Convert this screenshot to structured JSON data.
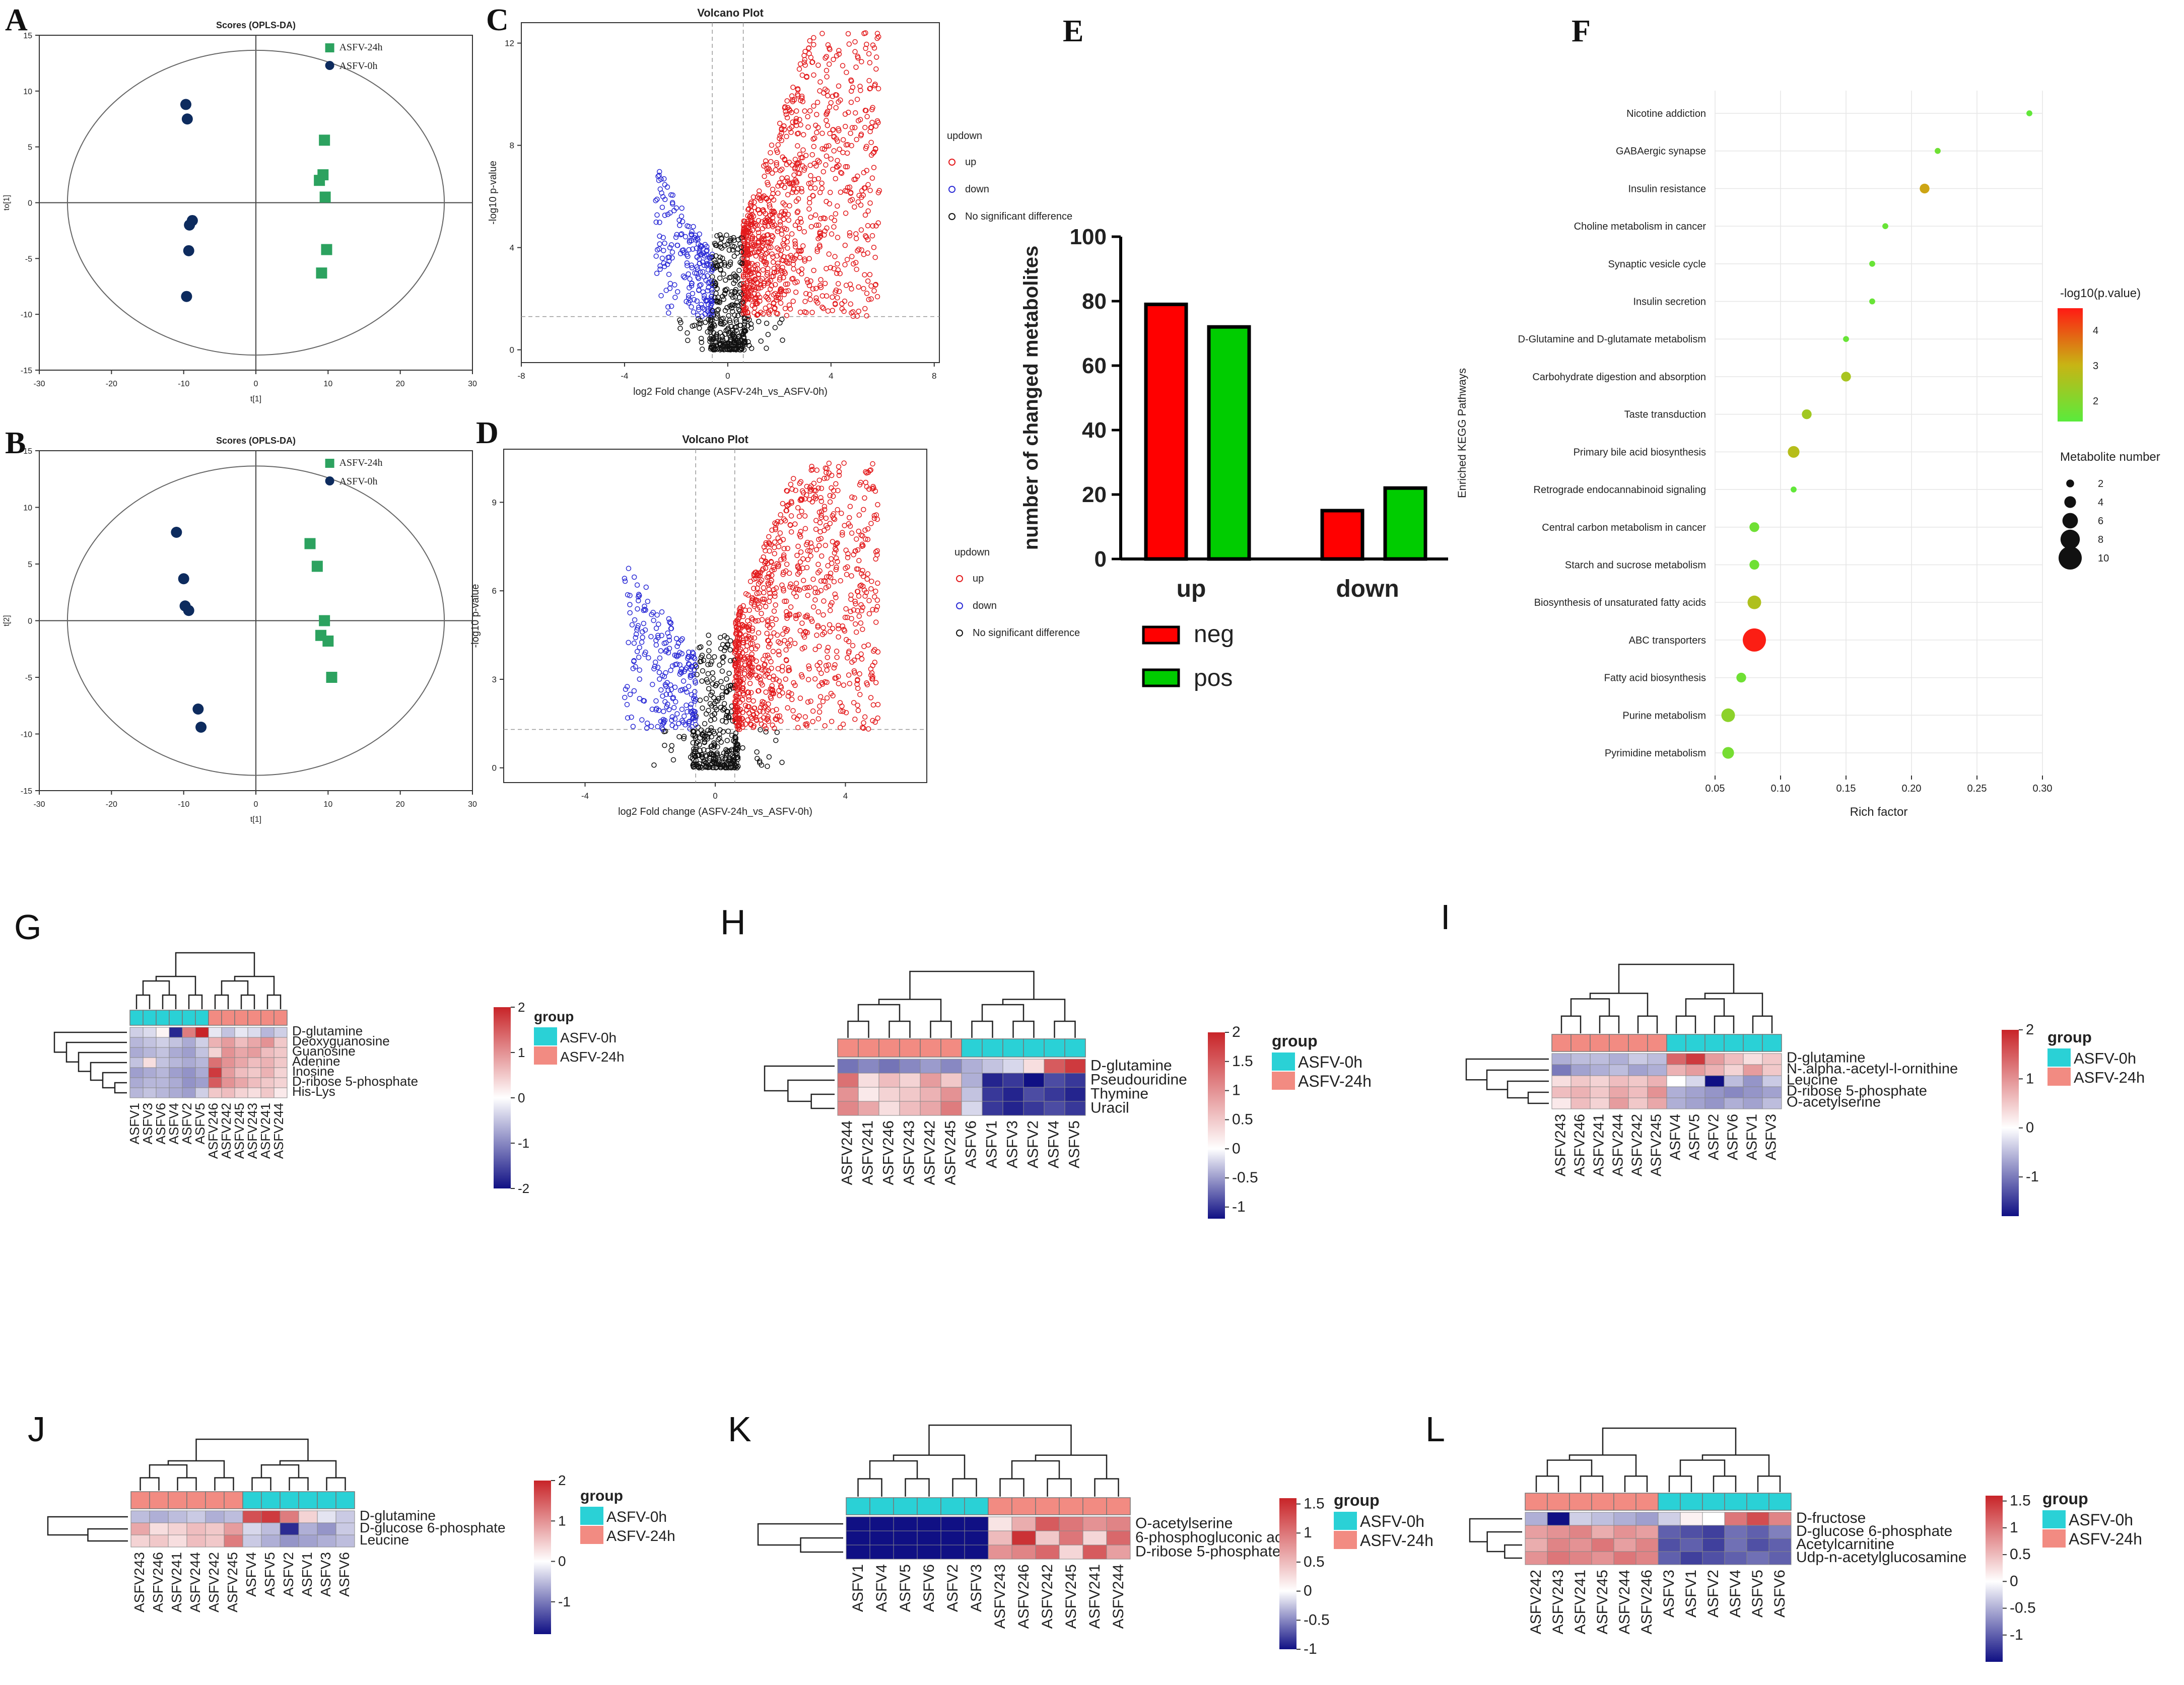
{
  "colors": {
    "up": "#e31a1c",
    "down": "#2b2bd6",
    "ns": "#111111",
    "green_sq": "#2ca25f",
    "navy": "#0d2b5e",
    "neg": "#ff0000",
    "pos": "#00cc00",
    "g0": "#2ad1d6",
    "g24": "#f28b82"
  },
  "chart_data": [
    {
      "panel": "A",
      "type": "scatter",
      "title": "Scores (OPLS-DA)",
      "xlabel": "t[1]",
      "ylabel": "to[1]",
      "xlim": [
        -30,
        30
      ],
      "ylim": [
        -15,
        15
      ],
      "xticks": [
        -30,
        -20,
        -10,
        0,
        10,
        20,
        30
      ],
      "yticks": [
        -15,
        -10,
        -5,
        0,
        5,
        10,
        15
      ],
      "legend": [
        "ASFV-24h",
        "ASFV-0h"
      ],
      "series": [
        {
          "name": "ASFV-24h",
          "x": [
            9.5,
            8.8,
            9.3,
            9.6,
            9.8,
            9.1
          ],
          "y": [
            5.6,
            2.0,
            2.5,
            0.5,
            -4.2,
            -6.3
          ]
        },
        {
          "name": "ASFV-0h",
          "x": [
            -9.7,
            -9.5,
            -9.2,
            -8.8,
            -9.3,
            -9.6
          ],
          "y": [
            8.8,
            7.5,
            -2.0,
            -1.6,
            -4.3,
            -8.4
          ]
        }
      ]
    },
    {
      "panel": "B",
      "type": "scatter",
      "title": "Scores (OPLS-DA)",
      "xlabel": "t[1]",
      "ylabel": "t[2]",
      "xlim": [
        -30,
        30
      ],
      "ylim": [
        -15,
        15
      ],
      "xticks": [
        -30,
        -20,
        -10,
        0,
        10,
        20,
        30
      ],
      "yticks": [
        -15,
        -10,
        -5,
        0,
        5,
        10,
        15
      ],
      "legend": [
        "ASFV-24h",
        "ASFV-0h"
      ],
      "series": [
        {
          "name": "ASFV-24h",
          "x": [
            7.5,
            8.5,
            9.5,
            9.0,
            10.0,
            10.5
          ],
          "y": [
            6.8,
            4.8,
            0.0,
            -1.3,
            -1.8,
            -5.0
          ]
        },
        {
          "name": "ASFV-0h",
          "x": [
            -11.0,
            -10.0,
            -9.8,
            -9.3,
            -8.0,
            -7.6
          ],
          "y": [
            7.8,
            3.7,
            1.3,
            0.9,
            -7.8,
            -9.4
          ]
        }
      ]
    },
    {
      "panel": "C",
      "type": "scatter",
      "title": "Volcano Plot",
      "xlabel": "log2 Fold change (ASFV-24h_vs_ASFV-0h)",
      "ylabel": "-log10 p-value",
      "xlim": [
        -8,
        8.2
      ],
      "ylim": [
        -0.5,
        12.8
      ],
      "xticks": [
        -8,
        -4,
        0,
        4,
        8
      ],
      "yticks": [
        0,
        4,
        8,
        12
      ],
      "legend_title": "updown",
      "legend": [
        "up",
        "down",
        "No significant difference"
      ],
      "seed": 11
    },
    {
      "panel": "D",
      "type": "scatter",
      "title": "Volcano Plot",
      "xlabel": "log2 Fold change (ASFV-24h_vs_ASFV-0h)",
      "ylabel": "-log10 p-value",
      "xlim": [
        -6.5,
        6.5
      ],
      "ylim": [
        -0.5,
        10.8
      ],
      "xticks": [
        -4,
        0,
        4
      ],
      "yticks": [
        0,
        3,
        6,
        9
      ],
      "legend_title": "updown",
      "legend": [
        "up",
        "down",
        "No significant difference"
      ],
      "seed": 23
    },
    {
      "panel": "E",
      "type": "bar",
      "ylabel": "number of changed metabolites",
      "categories": [
        "up",
        "down"
      ],
      "ylim": [
        0,
        100
      ],
      "yticks": [
        0,
        20,
        40,
        60,
        80,
        100
      ],
      "series": [
        {
          "name": "neg",
          "values": [
            79,
            15
          ]
        },
        {
          "name": "pos",
          "values": [
            72,
            22
          ]
        }
      ]
    },
    {
      "panel": "F",
      "type": "scatter",
      "xlabel": "Rich factor",
      "ylabel": "Enriched KEGG Pathways",
      "xlim": [
        0.05,
        0.3
      ],
      "xticks": [
        0.05,
        0.1,
        0.15,
        0.2,
        0.25,
        0.3
      ],
      "xtick_labels": [
        "0.05",
        "0.10",
        "0.15",
        "0.20",
        "0.25",
        "0.30"
      ],
      "color_title": "-log10(p.value)",
      "color_ticks": [
        "4",
        "3",
        "2"
      ],
      "size_title": "Metabolite number",
      "size_ticks": [
        "2",
        "4",
        "6",
        "8",
        "10"
      ],
      "pathways": [
        {
          "name": "Nicotine addiction",
          "x": 0.29,
          "n": 1,
          "p": 1.6
        },
        {
          "name": "GABAergic synapse",
          "x": 0.22,
          "n": 1,
          "p": 1.8
        },
        {
          "name": "Insulin resistance",
          "x": 0.21,
          "n": 3,
          "p": 3.2
        },
        {
          "name": "Choline metabolism in cancer",
          "x": 0.18,
          "n": 1,
          "p": 1.7
        },
        {
          "name": "Synaptic vesicle cycle",
          "x": 0.17,
          "n": 1,
          "p": 1.7
        },
        {
          "name": "Insulin secretion",
          "x": 0.17,
          "n": 1,
          "p": 1.7
        },
        {
          "name": "D-Glutamine and D-glutamate metabolism",
          "x": 0.15,
          "n": 1,
          "p": 1.7
        },
        {
          "name": "Carbohydrate digestion and absorption",
          "x": 0.15,
          "n": 3,
          "p": 2.6
        },
        {
          "name": "Taste transduction",
          "x": 0.12,
          "n": 3,
          "p": 2.5
        },
        {
          "name": "Primary bile acid biosynthesis",
          "x": 0.11,
          "n": 4,
          "p": 2.8
        },
        {
          "name": "Retrograde endocannabinoid signaling",
          "x": 0.11,
          "n": 1,
          "p": 1.6
        },
        {
          "name": "Central carbon metabolism in cancer",
          "x": 0.08,
          "n": 3,
          "p": 1.8
        },
        {
          "name": "Starch and sucrose metabolism",
          "x": 0.08,
          "n": 3,
          "p": 1.8
        },
        {
          "name": "Biosynthesis of unsaturated fatty acids",
          "x": 0.08,
          "n": 5,
          "p": 2.7
        },
        {
          "name": "ABC transporters",
          "x": 0.08,
          "n": 10,
          "p": 4.5
        },
        {
          "name": "Fatty acid biosynthesis",
          "x": 0.07,
          "n": 3,
          "p": 1.8
        },
        {
          "name": "Purine metabolism",
          "x": 0.06,
          "n": 5,
          "p": 2.2
        },
        {
          "name": "Pyrimidine metabolism",
          "x": 0.06,
          "n": 4,
          "p": 1.9
        }
      ]
    },
    {
      "panel": "G",
      "type": "heatmap",
      "group_title": "group",
      "group_labels": [
        "ASFV-0h",
        "ASFV-24h"
      ],
      "col_groups": [
        0,
        0,
        0,
        0,
        0,
        0,
        1,
        1,
        1,
        1,
        1,
        1
      ],
      "cols": [
        "ASFV1",
        "ASFV3",
        "ASFV6",
        "ASFV4",
        "ASFV2",
        "ASFV5",
        "ASFV246",
        "ASFV242",
        "ASFV245",
        "ASFV243",
        "ASFV241",
        "ASFV244"
      ],
      "rows": [
        "D-glutamine",
        "Deoxyguanosine",
        "Guanosine",
        "Adenine",
        "Inosine",
        "D-ribose 5-phosphate",
        "His-Lys"
      ],
      "scale_ticks": [
        "2",
        "1",
        "0",
        "-1",
        "-2"
      ],
      "vmin": -2,
      "vmax": 2,
      "values": [
        [
          -0.4,
          -0.3,
          0.1,
          -1.8,
          1.2,
          2.0,
          -0.2,
          -0.5,
          -0.2,
          -0.3,
          -0.6,
          -0.4
        ],
        [
          -0.6,
          -0.5,
          -0.4,
          -0.5,
          -0.7,
          -0.4,
          0.7,
          0.9,
          0.6,
          0.8,
          1.0,
          0.5
        ],
        [
          -0.7,
          -0.6,
          -0.5,
          -0.7,
          -0.8,
          -0.5,
          0.4,
          1.0,
          0.8,
          0.9,
          0.6,
          0.5
        ],
        [
          -0.5,
          0.3,
          -0.5,
          -0.6,
          -0.7,
          -0.6,
          1.3,
          1.0,
          0.8,
          0.6,
          0.7,
          0.5
        ],
        [
          -0.8,
          -0.7,
          -0.6,
          -0.8,
          -0.9,
          -0.7,
          1.8,
          0.9,
          0.6,
          0.5,
          0.7,
          0.4
        ],
        [
          -0.7,
          -0.6,
          -0.6,
          -0.7,
          -0.9,
          -0.8,
          1.5,
          1.0,
          0.8,
          0.6,
          0.5,
          0.4
        ],
        [
          -0.6,
          -0.5,
          -0.6,
          -0.7,
          -0.8,
          -0.4,
          0.5,
          0.6,
          0.4,
          0.3,
          0.5,
          0.2
        ]
      ]
    },
    {
      "panel": "H",
      "type": "heatmap",
      "group_title": "group",
      "group_labels": [
        "ASFV-0h",
        "ASFV-24h"
      ],
      "col_groups": [
        1,
        1,
        1,
        1,
        1,
        1,
        0,
        0,
        0,
        0,
        0,
        0
      ],
      "cols": [
        "ASFV244",
        "ASFV241",
        "ASFV246",
        "ASFV243",
        "ASFV242",
        "ASFV245",
        "ASFV6",
        "ASFV1",
        "ASFV3",
        "ASFV2",
        "ASFV4",
        "ASFV5"
      ],
      "rows": [
        "D-glutamine",
        "Pseudouridine",
        "Thymine",
        "Uracil"
      ],
      "scale_ticks": [
        "2",
        "1.5",
        "1",
        "0.5",
        "0",
        "-0.5",
        "-1"
      ],
      "vmin": -1.2,
      "vmax": 2,
      "values": [
        [
          -0.7,
          -0.6,
          -0.7,
          -0.6,
          -0.5,
          -0.6,
          -0.4,
          -0.3,
          -0.2,
          0.3,
          1.5,
          1.8
        ],
        [
          1.3,
          0.3,
          0.6,
          0.4,
          0.9,
          0.5,
          -0.4,
          -1.1,
          -1.0,
          -1.2,
          -0.9,
          -1.0
        ],
        [
          1.0,
          0.2,
          0.4,
          0.5,
          0.7,
          1.0,
          -0.3,
          -1.0,
          -1.1,
          -0.9,
          -1.0,
          -1.1
        ],
        [
          1.1,
          0.8,
          0.3,
          0.6,
          0.8,
          1.2,
          -0.2,
          -1.0,
          -1.1,
          -1.0,
          -0.9,
          -1.0
        ]
      ]
    },
    {
      "panel": "I",
      "type": "heatmap",
      "group_title": "group",
      "group_labels": [
        "ASFV-0h",
        "ASFV-24h"
      ],
      "col_groups": [
        1,
        1,
        1,
        1,
        1,
        1,
        0,
        0,
        0,
        0,
        0,
        0
      ],
      "cols": [
        "ASFV243",
        "ASFV246",
        "ASFV241",
        "ASFV244",
        "ASFV242",
        "ASFV245",
        "ASFV4",
        "ASFV5",
        "ASFV2",
        "ASFV6",
        "ASFV1",
        "ASFV3"
      ],
      "rows": [
        "D-glutamine",
        "N-.alpha.-acetyl-l-ornithine",
        "Leucine",
        "D-ribose 5-phosphate",
        "O-acetylserine"
      ],
      "scale_ticks": [
        "2",
        "1",
        "0",
        "-1"
      ],
      "vmin": -1.8,
      "vmax": 2,
      "values": [
        [
          -0.6,
          -0.5,
          -0.5,
          -0.6,
          -0.4,
          -0.5,
          1.4,
          1.8,
          0.9,
          0.6,
          0.3,
          0.5
        ],
        [
          -1.0,
          -0.7,
          -0.6,
          -0.5,
          -0.7,
          -0.6,
          0.7,
          0.9,
          0.7,
          0.4,
          0.9,
          0.5
        ],
        [
          0.3,
          0.5,
          0.4,
          0.6,
          0.5,
          0.7,
          0.0,
          -0.3,
          -1.8,
          -0.5,
          -0.8,
          -0.4
        ],
        [
          0.6,
          0.7,
          0.5,
          0.8,
          0.6,
          1.0,
          -0.6,
          -0.7,
          -0.8,
          -0.9,
          -0.8,
          -0.7
        ],
        [
          0.2,
          0.6,
          0.4,
          0.9,
          0.5,
          0.8,
          -0.6,
          -0.7,
          -0.8,
          -0.6,
          -0.7,
          -0.5
        ]
      ]
    },
    {
      "panel": "J",
      "type": "heatmap",
      "group_title": "group",
      "group_labels": [
        "ASFV-0h",
        "ASFV-24h"
      ],
      "col_groups": [
        1,
        1,
        1,
        1,
        1,
        1,
        0,
        0,
        0,
        0,
        0,
        0
      ],
      "cols": [
        "ASFV243",
        "ASFV246",
        "ASFV241",
        "ASFV244",
        "ASFV242",
        "ASFV245",
        "ASFV4",
        "ASFV5",
        "ASFV2",
        "ASFV1",
        "ASFV3",
        "ASFV6"
      ],
      "rows": [
        "D-glutamine",
        "D-glucose 6-phosphate",
        "Leucine"
      ],
      "scale_ticks": [
        "2",
        "1",
        "0",
        "-1"
      ],
      "vmin": -1.8,
      "vmax": 2,
      "values": [
        [
          -0.5,
          -0.6,
          -0.5,
          -0.4,
          -0.6,
          -0.5,
          1.6,
          1.8,
          1.2,
          0.4,
          -0.2,
          -0.4
        ],
        [
          0.8,
          0.3,
          0.4,
          0.6,
          0.5,
          0.9,
          -0.3,
          -0.5,
          -1.6,
          -0.6,
          -0.8,
          -0.4
        ],
        [
          0.4,
          0.5,
          0.3,
          0.6,
          0.5,
          1.2,
          -0.4,
          -0.6,
          -0.8,
          -0.7,
          -0.6,
          -0.5
        ]
      ]
    },
    {
      "panel": "K",
      "type": "heatmap",
      "group_title": "group",
      "group_labels": [
        "ASFV-0h",
        "ASFV-24h"
      ],
      "col_groups": [
        0,
        0,
        0,
        0,
        0,
        0,
        1,
        1,
        1,
        1,
        1,
        1
      ],
      "cols": [
        "ASFV1",
        "ASFV4",
        "ASFV5",
        "ASFV6",
        "ASFV2",
        "ASFV3",
        "ASFV243",
        "ASFV246",
        "ASFV242",
        "ASFV245",
        "ASFV241",
        "ASFV244"
      ],
      "rows": [
        "O-acetylserine",
        "6-phosphogluconic acid",
        "D-ribose 5-phosphate"
      ],
      "scale_ticks": [
        "1.5",
        "1",
        "0.5",
        "0",
        "-0.5",
        "-1"
      ],
      "vmin": -1,
      "vmax": 1.6,
      "values": [
        [
          -1,
          -1,
          -1,
          -1,
          -1,
          -1,
          0.2,
          0.6,
          1.2,
          1.0,
          0.8,
          0.9
        ],
        [
          -1,
          -1,
          -1,
          -1,
          -1,
          -1,
          0.5,
          1.5,
          0.4,
          1.0,
          0.3,
          1.1
        ],
        [
          -1,
          -1,
          -1,
          -1,
          -1,
          -1,
          0.8,
          0.9,
          1.1,
          0.3,
          1.2,
          0.7
        ]
      ]
    },
    {
      "panel": "L",
      "type": "heatmap",
      "group_title": "group",
      "group_labels": [
        "ASFV-0h",
        "ASFV-24h"
      ],
      "col_groups": [
        1,
        1,
        1,
        1,
        1,
        1,
        0,
        0,
        0,
        0,
        0,
        0
      ],
      "cols": [
        "ASFV242",
        "ASFV243",
        "ASFV241",
        "ASFV245",
        "ASFV244",
        "ASFV246",
        "ASFV3",
        "ASFV1",
        "ASFV2",
        "ASFV4",
        "ASFV5",
        "ASFV6"
      ],
      "rows": [
        "D-fructose",
        "D-glucose 6-phosphate",
        "Acetylcarnitine",
        "Udp-n-acetylglucosamine"
      ],
      "scale_ticks": [
        "1.5",
        "1",
        "0.5",
        "0",
        "-0.5",
        "-1"
      ],
      "vmin": -1.5,
      "vmax": 1.6,
      "values": [
        [
          -0.5,
          -1.5,
          -0.3,
          -0.4,
          -0.5,
          -0.6,
          -0.3,
          0.1,
          0.0,
          1.0,
          1.3,
          0.9
        ],
        [
          0.7,
          0.8,
          0.9,
          0.6,
          0.8,
          0.7,
          -1.0,
          -1.1,
          -1.2,
          -0.9,
          -1.0,
          -0.8
        ],
        [
          0.6,
          0.9,
          0.8,
          1.0,
          0.7,
          0.9,
          -1.1,
          -1.0,
          -1.2,
          -0.9,
          -1.1,
          -1.0
        ],
        [
          0.8,
          1.0,
          0.9,
          0.8,
          1.0,
          0.9,
          -1.0,
          -1.2,
          -1.1,
          -1.0,
          -0.9,
          -1.0
        ]
      ]
    }
  ]
}
